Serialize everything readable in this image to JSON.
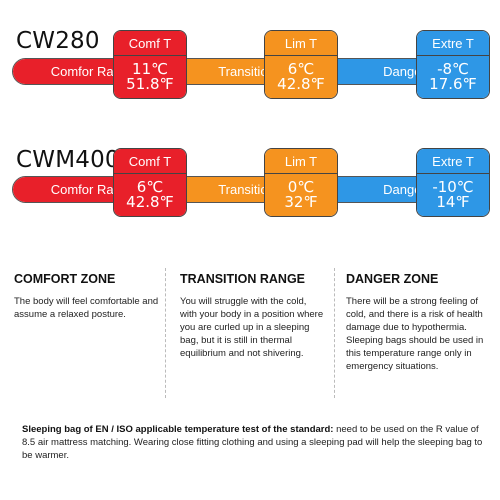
{
  "colors": {
    "comfort": "#e8202a",
    "transition": "#f5931f",
    "danger": "#2e97e6"
  },
  "products": [
    {
      "model": "CW280",
      "band": {
        "comfort": "Comfor Range",
        "transition": "Transition R",
        "danger": "Danger R"
      },
      "comfort": {
        "label": "Comf T",
        "celsius": "11℃",
        "fahrenheit": "51.8℉"
      },
      "limit": {
        "label": "Lim T",
        "celsius": "6℃",
        "fahrenheit": "42.8℉"
      },
      "extreme": {
        "label": "Extre T",
        "celsius": "-8℃",
        "fahrenheit": "17.6℉"
      }
    },
    {
      "model": "CWM400",
      "band": {
        "comfort": "Comfor Range",
        "transition": "Transition R",
        "danger": "Danger R"
      },
      "comfort": {
        "label": "Comf T",
        "celsius": "6℃",
        "fahrenheit": "42.8℉"
      },
      "limit": {
        "label": "Lim T",
        "celsius": "0℃",
        "fahrenheit": "32℉"
      },
      "extreme": {
        "label": "Extre T",
        "celsius": "-10℃",
        "fahrenheit": "14℉"
      }
    }
  ],
  "zones": [
    {
      "title": "COMFORT ZONE",
      "text": "The body will feel comfortable and assume a relaxed posture."
    },
    {
      "title": "TRANSITION RANGE",
      "text": "You will struggle with the cold, with your body in a position where you are curled up in a sleeping bag, but it is still in thermal equilibrium and not shivering."
    },
    {
      "title": "DANGER ZONE",
      "text": "There will be a strong feeling of cold, and there is a risk of health damage due to hypothermia. Sleeping bags should be used in this temperature range only in emergency situations."
    }
  ],
  "footer": {
    "bold": "Sleeping bag of EN / ISO applicable temperature test of the standard:",
    "text": " need to be used on the R value of 8.5 air mattress matching. Wearing close fitting clothing and using a sleeping pad will help the sleeping bag to be warmer."
  }
}
